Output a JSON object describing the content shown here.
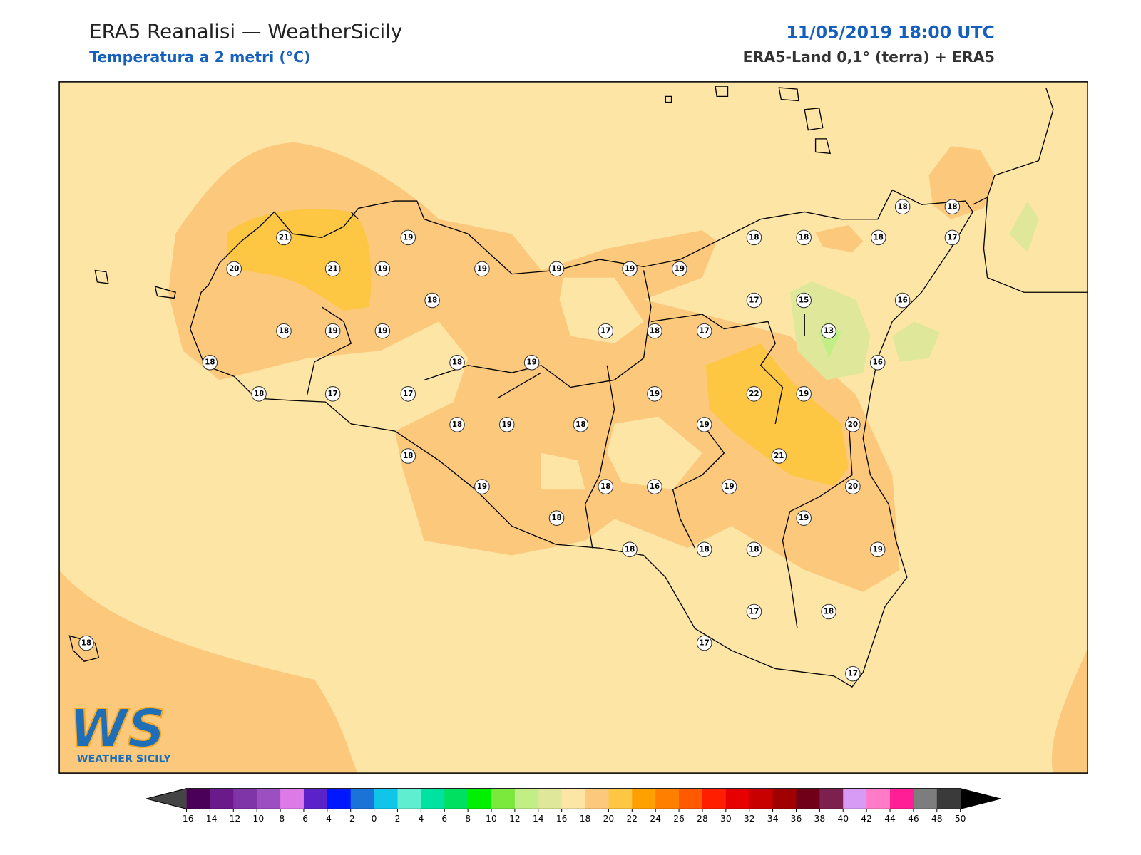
{
  "header": {
    "title": "ERA5 Reanalisi — WeatherSicily",
    "subtitle": "Temperatura a 2 metri (°C)",
    "datetime": "11/05/2019 18:00 UTC",
    "source": "ERA5-Land 0,1° (terra) + ERA5"
  },
  "stations": {
    "values": [
      21,
      19,
      20,
      21,
      19,
      19,
      19,
      19,
      19,
      18,
      18,
      18,
      18,
      18,
      17,
      18,
      17,
      15,
      16,
      18,
      19,
      19,
      17,
      18,
      17,
      13,
      18,
      18,
      19,
      16,
      18,
      17,
      17,
      19,
      22,
      19,
      18,
      19,
      18,
      19,
      20,
      18,
      21,
      19,
      18,
      16,
      19,
      20,
      18,
      19,
      18,
      18,
      18,
      19,
      17,
      18,
      18,
      17,
      17
    ]
  },
  "colorbar": {
    "ticks": [
      -16,
      -14,
      -12,
      -10,
      -8,
      -6,
      -4,
      -2,
      0,
      2,
      4,
      6,
      8,
      10,
      12,
      14,
      16,
      18,
      20,
      22,
      24,
      26,
      28,
      30,
      32,
      34,
      36,
      38,
      40,
      42,
      44,
      46,
      48,
      50
    ],
    "colors": [
      "#4b0058",
      "#6a1a8a",
      "#7f35a8",
      "#9c4fc0",
      "#dd7ae8",
      "#5b22c9",
      "#0018ff",
      "#1a73d6",
      "#10c5e8",
      "#5fefd0",
      "#00e3a0",
      "#00e060",
      "#00f000",
      "#7be83c",
      "#c2ee86",
      "#dfe79a",
      "#fde5a6",
      "#fbc87c",
      "#fdc743",
      "#fea000",
      "#ff8000",
      "#ff5a00",
      "#ff1e00",
      "#e60000",
      "#c80000",
      "#a00000",
      "#700018",
      "#7c2050",
      "#d79bf5",
      "#ff7bc8",
      "#ff1e96",
      "#7d7d7d",
      "#3a3a3a"
    ],
    "under": "#444444",
    "over": "#000000"
  },
  "logo": {
    "mark": "WS",
    "name": "WEATHER SICILY"
  }
}
